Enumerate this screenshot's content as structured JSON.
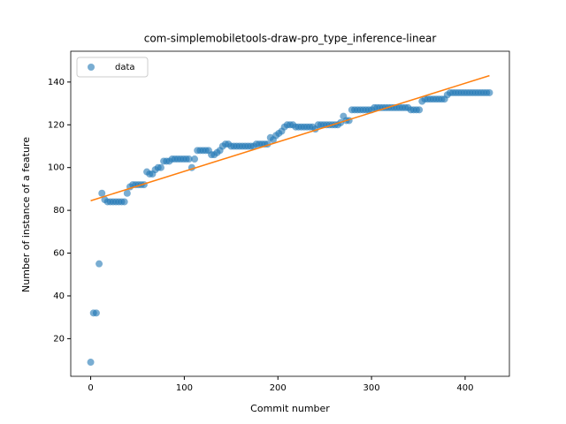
{
  "chart_data": {
    "type": "scatter",
    "title": "com-simplemobiletools-draw-pro_type_inference-linear",
    "x_label": "Commit number",
    "y_label": "Number of instance of a feature",
    "xlim": [
      -21.3,
      447.3
    ],
    "ylim": [
      2.4,
      154.4
    ],
    "xticks": [
      0,
      100,
      200,
      300,
      400
    ],
    "yticks": [
      20,
      40,
      60,
      80,
      100,
      120,
      140
    ],
    "legend": "upper left",
    "series": [
      {
        "name": "data",
        "color": "#1f77b4",
        "x": [
          0,
          3,
          6,
          9,
          12,
          15,
          18,
          21,
          24,
          27,
          30,
          33,
          36,
          39,
          42,
          45,
          48,
          51,
          54,
          57,
          60,
          63,
          66,
          69,
          72,
          75,
          78,
          81,
          84,
          87,
          90,
          93,
          96,
          99,
          102,
          105,
          108,
          111,
          114,
          117,
          120,
          123,
          126,
          129,
          132,
          135,
          138,
          141,
          144,
          147,
          150,
          153,
          156,
          159,
          162,
          165,
          168,
          171,
          174,
          177,
          180,
          183,
          186,
          189,
          192,
          195,
          198,
          201,
          204,
          207,
          210,
          213,
          216,
          219,
          222,
          225,
          228,
          231,
          234,
          237,
          240,
          243,
          246,
          249,
          252,
          255,
          258,
          261,
          264,
          267,
          270,
          273,
          276,
          279,
          282,
          285,
          288,
          291,
          294,
          297,
          300,
          303,
          306,
          309,
          312,
          315,
          318,
          321,
          324,
          327,
          330,
          333,
          336,
          339,
          342,
          345,
          348,
          351,
          354,
          357,
          360,
          363,
          366,
          369,
          372,
          375,
          378,
          381,
          384,
          387,
          390,
          393,
          396,
          399,
          402,
          405,
          408,
          411,
          414,
          417,
          420,
          423,
          426
        ],
        "values": [
          9,
          32,
          32,
          55,
          88,
          85,
          84,
          84,
          84,
          84,
          84,
          84,
          84,
          88,
          91,
          92,
          92,
          92,
          92,
          92,
          98,
          97,
          97,
          99,
          100,
          100,
          103,
          103,
          103,
          104,
          104,
          104,
          104,
          104,
          104,
          104,
          100,
          104,
          108,
          108,
          108,
          108,
          108,
          106,
          106,
          107,
          108,
          110,
          111,
          111,
          110,
          110,
          110,
          110,
          110,
          110,
          110,
          110,
          110,
          111,
          111,
          111,
          111,
          111,
          114,
          113,
          115,
          116,
          117,
          119,
          120,
          120,
          120,
          119,
          119,
          119,
          119,
          119,
          119,
          119,
          118,
          120,
          120,
          120,
          120,
          120,
          120,
          120,
          120,
          121,
          124,
          122,
          122,
          127,
          127,
          127,
          127,
          127,
          127,
          127,
          127,
          128,
          128,
          128,
          128,
          128,
          128,
          128,
          128,
          128,
          128,
          128,
          128,
          128,
          127,
          127,
          127,
          127,
          131,
          132,
          132,
          132,
          132,
          132,
          132,
          132,
          132,
          134,
          135,
          135,
          135,
          135,
          135,
          135,
          135,
          135,
          135,
          135,
          135,
          135,
          135,
          135,
          135
        ]
      }
    ],
    "fit": {
      "color": "#ff7f0e",
      "x": [
        0,
        426
      ],
      "values": [
        84.5,
        143
      ]
    }
  }
}
